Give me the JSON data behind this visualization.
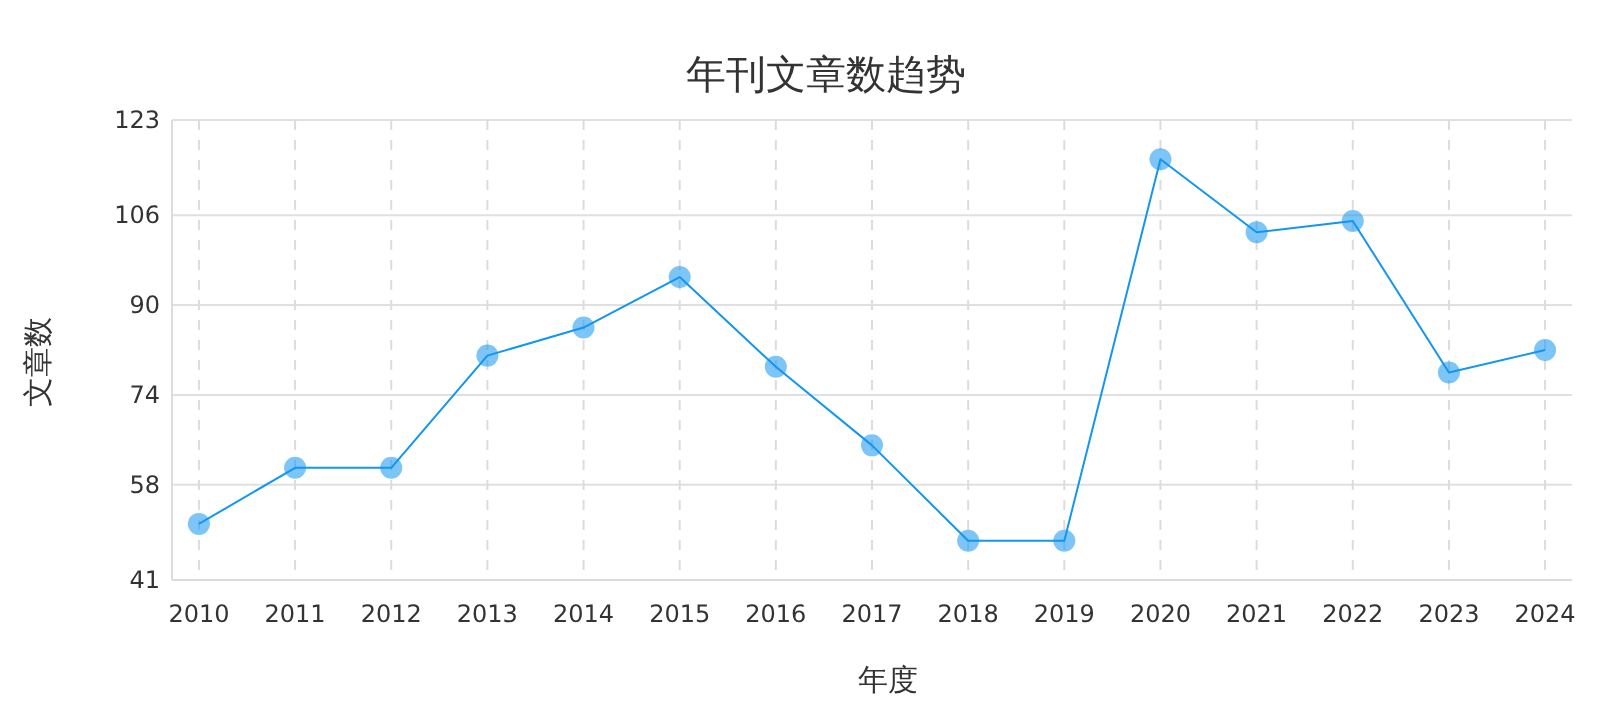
{
  "chart_data": {
    "type": "line",
    "title": "年刊文章数趋势",
    "xlabel": "年度",
    "ylabel": "文章数",
    "categories": [
      "2010",
      "2011",
      "2012",
      "2013",
      "2014",
      "2015",
      "2016",
      "2017",
      "2018",
      "2019",
      "2020",
      "2021",
      "2022",
      "2023",
      "2024"
    ],
    "series": [
      {
        "color": "#1296f0",
        "values": [
          51,
          61,
          61,
          81,
          86,
          95,
          79,
          65,
          48,
          48,
          116,
          103,
          105,
          78,
          82
        ]
      }
    ],
    "ylim": [
      41,
      123
    ],
    "yticks": [
      41,
      58,
      74,
      90,
      106,
      123
    ],
    "grid": true,
    "marker": "circle",
    "line_style": "solid"
  }
}
